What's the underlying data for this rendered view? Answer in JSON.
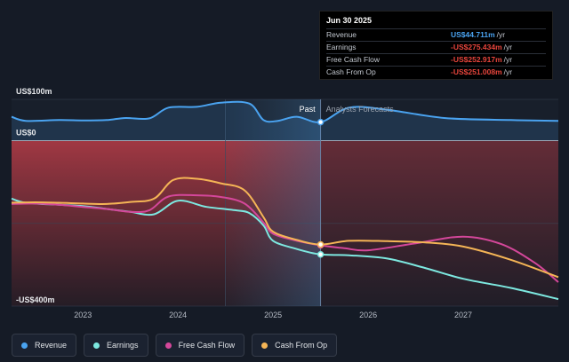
{
  "tooltip": {
    "date": "Jun 30 2025",
    "rows": [
      {
        "label": "Revenue",
        "value": "US$44.711m",
        "unit": "/yr",
        "color": "#4aa3f0"
      },
      {
        "label": "Earnings",
        "value": "-US$275.434m",
        "unit": "/yr",
        "color": "#e8453c"
      },
      {
        "label": "Free Cash Flow",
        "value": "-US$252.917m",
        "unit": "/yr",
        "color": "#e8453c"
      },
      {
        "label": "Cash From Op",
        "value": "-US$251.008m",
        "unit": "/yr",
        "color": "#e8453c"
      }
    ]
  },
  "chart_data": {
    "type": "line",
    "y_labels": [
      "US$100m",
      "US$0",
      "-US$400m"
    ],
    "ylim": [
      -400,
      100
    ],
    "xlim": [
      2022.25,
      2028.0
    ],
    "x_ticks": [
      2023,
      2024,
      2025,
      2026,
      2027
    ],
    "past_label": "Past",
    "forecast_label": "Analysts Forecasts",
    "past_boundary": 2025.5,
    "shade_start": 2024.5,
    "series": [
      {
        "name": "Revenue",
        "color": "#4aa3f0",
        "area": true,
        "points": [
          [
            2022.25,
            58
          ],
          [
            2022.4,
            48
          ],
          [
            2022.75,
            50
          ],
          [
            2023.0,
            49
          ],
          [
            2023.25,
            50
          ],
          [
            2023.45,
            55
          ],
          [
            2023.7,
            54
          ],
          [
            2023.9,
            80
          ],
          [
            2024.2,
            82
          ],
          [
            2024.45,
            92
          ],
          [
            2024.75,
            90
          ],
          [
            2024.9,
            50
          ],
          [
            2025.05,
            48
          ],
          [
            2025.25,
            58
          ],
          [
            2025.5,
            45
          ],
          [
            2025.8,
            80
          ],
          [
            2026.2,
            75
          ],
          [
            2026.8,
            55
          ],
          [
            2027.5,
            50
          ],
          [
            2028.0,
            48
          ]
        ]
      },
      {
        "name": "Earnings",
        "color": "#7de8e0",
        "points": [
          [
            2022.25,
            -140
          ],
          [
            2022.4,
            -150
          ],
          [
            2022.75,
            -155
          ],
          [
            2023.0,
            -158
          ],
          [
            2023.25,
            -165
          ],
          [
            2023.5,
            -172
          ],
          [
            2023.75,
            -178
          ],
          [
            2024.0,
            -145
          ],
          [
            2024.3,
            -160
          ],
          [
            2024.6,
            -168
          ],
          [
            2024.75,
            -175
          ],
          [
            2024.9,
            -205
          ],
          [
            2025.0,
            -242
          ],
          [
            2025.25,
            -262
          ],
          [
            2025.5,
            -275
          ],
          [
            2025.8,
            -277
          ],
          [
            2026.2,
            -285
          ],
          [
            2026.6,
            -308
          ],
          [
            2027.0,
            -334
          ],
          [
            2027.5,
            -356
          ],
          [
            2028.0,
            -383
          ]
        ]
      },
      {
        "name": "Free Cash Flow",
        "color": "#d4479a",
        "points": [
          [
            2022.25,
            -153
          ],
          [
            2022.5,
            -152
          ],
          [
            2022.75,
            -155
          ],
          [
            2023.0,
            -160
          ],
          [
            2023.25,
            -165
          ],
          [
            2023.5,
            -172
          ],
          [
            2023.7,
            -168
          ],
          [
            2023.9,
            -135
          ],
          [
            2024.2,
            -132
          ],
          [
            2024.45,
            -136
          ],
          [
            2024.7,
            -152
          ],
          [
            2024.9,
            -198
          ],
          [
            2025.0,
            -225
          ],
          [
            2025.25,
            -242
          ],
          [
            2025.5,
            -253
          ],
          [
            2025.75,
            -260
          ],
          [
            2026.0,
            -265
          ],
          [
            2026.5,
            -248
          ],
          [
            2027.0,
            -232
          ],
          [
            2027.4,
            -250
          ],
          [
            2027.75,
            -295
          ],
          [
            2028.0,
            -342
          ]
        ]
      },
      {
        "name": "Cash From Op",
        "color": "#f5b556",
        "points": [
          [
            2022.25,
            -150
          ],
          [
            2022.5,
            -149
          ],
          [
            2022.75,
            -150
          ],
          [
            2023.0,
            -152
          ],
          [
            2023.25,
            -153
          ],
          [
            2023.5,
            -148
          ],
          [
            2023.75,
            -140
          ],
          [
            2023.95,
            -95
          ],
          [
            2024.2,
            -92
          ],
          [
            2024.45,
            -103
          ],
          [
            2024.7,
            -120
          ],
          [
            2024.9,
            -185
          ],
          [
            2025.0,
            -220
          ],
          [
            2025.25,
            -240
          ],
          [
            2025.5,
            -251
          ],
          [
            2025.8,
            -242
          ],
          [
            2026.2,
            -243
          ],
          [
            2026.6,
            -246
          ],
          [
            2027.0,
            -256
          ],
          [
            2027.5,
            -288
          ],
          [
            2028.0,
            -330
          ]
        ]
      }
    ]
  },
  "legend": [
    {
      "label": "Revenue",
      "color": "#4aa3f0"
    },
    {
      "label": "Earnings",
      "color": "#7de8e0"
    },
    {
      "label": "Free Cash Flow",
      "color": "#d4479a"
    },
    {
      "label": "Cash From Op",
      "color": "#f5b556"
    }
  ]
}
